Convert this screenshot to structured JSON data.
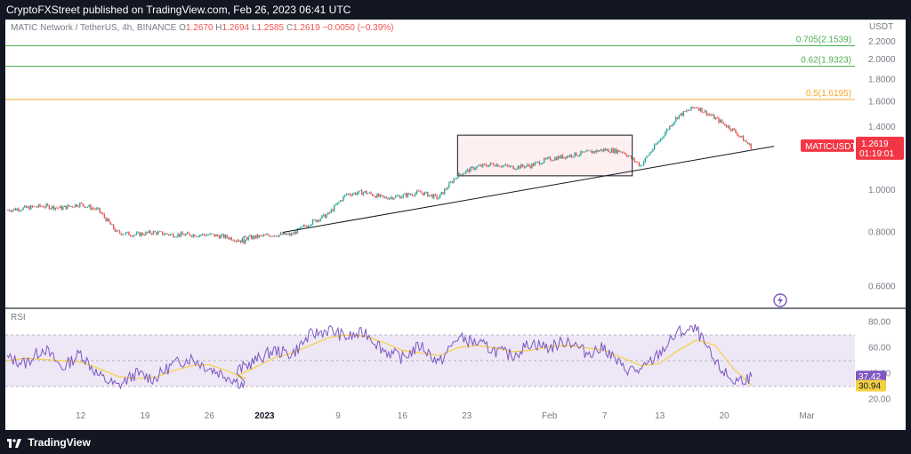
{
  "header": {
    "published": "CryptoFXStreet published on TradingView.com, Feb 26, 2023 06:41 UTC"
  },
  "legend": {
    "symbol": "MATIC Network / TetherUS, 4h, BINANCE",
    "o_key": "O",
    "o": "1.2670",
    "h_key": "H",
    "h": "1.2694",
    "l_key": "L",
    "l": "1.2585",
    "c_key": "C",
    "c": "1.2619",
    "change": "−0.0050 (−0.39%)"
  },
  "rsi_panel": {
    "label": "RSI"
  },
  "price_scale": {
    "currency": "USDT"
  },
  "footer": {
    "brand": "TradingView"
  },
  "colors": {
    "up": "#26a69a",
    "down": "#ef5350",
    "fib_green": "#4caf50",
    "fib_orange": "#f5a623",
    "rsi": "#7e57c2",
    "rsi_ma": "#f5d142",
    "badge_red": "#f23645",
    "rsi_band": "#ede7f6"
  },
  "chart_data": [
    {
      "type": "candlestick",
      "symbol_label": "MATICUSDT",
      "timeframe": "4h",
      "last_price": "1.2619",
      "countdown": "01:19:01",
      "y_axis": {
        "scale": "log",
        "ticks": [
          "2.2000",
          "2.0000",
          "1.8000",
          "1.6000",
          "1.4000",
          "1.2000",
          "1.0000",
          "0.8000",
          "0.6000"
        ]
      },
      "x_axis": {
        "ticks": [
          "12",
          "19",
          "26",
          "2023",
          "9",
          "16",
          "23",
          "Feb",
          "7",
          "13",
          "20",
          "Mar"
        ]
      },
      "fib_levels": [
        {
          "label": "0.705(2.1539)",
          "value": 2.1539
        },
        {
          "label": "0.62(1.9323)",
          "value": 1.9323
        },
        {
          "label": "0.5(1.6195)",
          "value": 1.6195
        }
      ],
      "annotations": [
        {
          "type": "trendline",
          "from": [
            "Jan 6",
            0.8
          ],
          "to": [
            "Feb 26",
            1.24
          ]
        },
        {
          "type": "rectangle",
          "from": [
            "Jan 25",
            1.34
          ],
          "to": [
            "Feb 13",
            1.08
          ]
        }
      ],
      "series": [
        {
          "name": "price",
          "x": [
            "Dec 4",
            "Dec 6",
            "Dec 8",
            "Dec 10",
            "Dec 12",
            "Dec 14",
            "Dec 16",
            "Dec 18",
            "Dec 20",
            "Dec 22",
            "Dec 24",
            "Dec 26",
            "Dec 28",
            "Dec 30",
            "Jan 1",
            "Jan 3",
            "Jan 5",
            "Jan 7",
            "Jan 9",
            "Jan 11",
            "Jan 13",
            "Jan 15",
            "Jan 17",
            "Jan 19",
            "Jan 21",
            "Jan 23",
            "Jan 25",
            "Jan 27",
            "Jan 29",
            "Jan 31",
            "Feb 2",
            "Feb 4",
            "Feb 6",
            "Feb 8",
            "Feb 10",
            "Feb 12",
            "Feb 14",
            "Feb 16",
            "Feb 18",
            "Feb 20",
            "Feb 22",
            "Feb 24",
            "Feb 26"
          ],
          "values": [
            0.9,
            0.91,
            0.92,
            0.91,
            0.93,
            0.9,
            0.8,
            0.79,
            0.8,
            0.79,
            0.79,
            0.79,
            0.78,
            0.76,
            0.77,
            0.78,
            0.79,
            0.79,
            0.84,
            0.88,
            0.98,
            0.99,
            0.96,
            0.97,
            0.99,
            0.96,
            1.08,
            1.13,
            1.15,
            1.13,
            1.14,
            1.18,
            1.2,
            1.22,
            1.24,
            1.23,
            1.14,
            1.3,
            1.48,
            1.56,
            1.47,
            1.38,
            1.26
          ]
        }
      ]
    },
    {
      "type": "line",
      "title": "RSI",
      "y_axis": {
        "ticks": [
          "80.00",
          "60.00",
          "40.00",
          "20.00"
        ],
        "bands": [
          70,
          30
        ]
      },
      "current": [
        "37.42",
        "30.94"
      ],
      "series": [
        {
          "name": "rsi",
          "x": [
            "Dec 4",
            "Dec 6",
            "Dec 8",
            "Dec 10",
            "Dec 12",
            "Dec 14",
            "Dec 16",
            "Dec 18",
            "Dec 20",
            "Dec 22",
            "Dec 24",
            "Dec 26",
            "Dec 28",
            "Dec 30",
            "Jan 1",
            "Jan 3",
            "Jan 5",
            "Jan 7",
            "Jan 9",
            "Jan 11",
            "Jan 13",
            "Jan 15",
            "Jan 17",
            "Jan 19",
            "Jan 21",
            "Jan 23",
            "Jan 25",
            "Jan 27",
            "Jan 29",
            "Jan 31",
            "Feb 2",
            "Feb 4",
            "Feb 6",
            "Feb 8",
            "Feb 10",
            "Feb 12",
            "Feb 14",
            "Feb 16",
            "Feb 18",
            "Feb 20",
            "Feb 22",
            "Feb 24",
            "Feb 26"
          ],
          "values": [
            52,
            48,
            60,
            44,
            56,
            38,
            30,
            40,
            36,
            47,
            52,
            44,
            38,
            30,
            42,
            50,
            58,
            55,
            70,
            74,
            68,
            72,
            58,
            52,
            62,
            48,
            68,
            64,
            58,
            54,
            64,
            60,
            66,
            56,
            60,
            44,
            42,
            56,
            72,
            74,
            48,
            34,
            37.42
          ]
        },
        {
          "name": "rsi_ma",
          "values": [
            50,
            52,
            51,
            50,
            49,
            44,
            38,
            36,
            37,
            42,
            46,
            47,
            42,
            36,
            38,
            45,
            52,
            56,
            62,
            68,
            70,
            69,
            64,
            58,
            56,
            54,
            60,
            62,
            60,
            57,
            58,
            61,
            62,
            60,
            58,
            52,
            46,
            48,
            58,
            66,
            62,
            44,
            30.94
          ]
        }
      ]
    }
  ]
}
